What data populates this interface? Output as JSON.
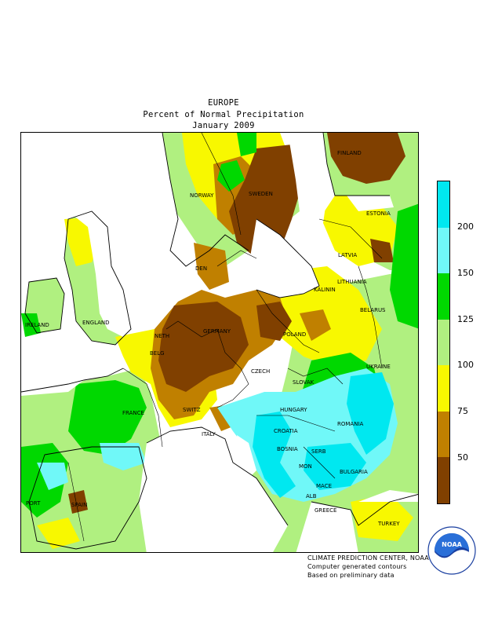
{
  "header": {
    "region": "EUROPE",
    "product": "Percent of Normal Precipitation",
    "period": "January 2009"
  },
  "legend": {
    "ticks": [
      "200",
      "150",
      "125",
      "100",
      "75",
      "50"
    ],
    "classes": [
      {
        "range": ">200",
        "color": "#00e8f0"
      },
      {
        "range": "150-200",
        "color": "#70f8f8"
      },
      {
        "range": "125-150",
        "color": "#00d800"
      },
      {
        "range": "100-125",
        "color": "#b0f080"
      },
      {
        "range": "75-100",
        "color": "#f8f800"
      },
      {
        "range": "50-75",
        "color": "#c08000"
      },
      {
        "range": "<50",
        "color": "#804000"
      }
    ]
  },
  "countries": {
    "finland": "FINLAND",
    "norway": "NORWAY",
    "sweden": "SWEDEN",
    "estonia": "ESTONIA",
    "latvia": "LATVIA",
    "den": "DEN",
    "lithuania": "LITHUANIA",
    "kalinin": "KALININ",
    "belarus": "BELARUS",
    "ireland": "IRELAND",
    "england": "ENGLAND",
    "neth": "NETH",
    "germany": "GERMANY",
    "poland": "POLAND",
    "belg": "BELG",
    "czech": "CZECH",
    "ukraine": "UKRAINE",
    "slovak": "SLOVAK",
    "france": "FRANCE",
    "switz": "SWITZ",
    "hungary": "HUNGARY",
    "romania": "ROMANIA",
    "italy": "ITALY",
    "croatia": "CROATIA",
    "bosnia": "BOSNIA",
    "serb": "SERB",
    "mon": "MON",
    "bulgaria": "BULGARIA",
    "mace": "MACE",
    "alb": "ALB",
    "port": "PORT",
    "spain": "SPAIN",
    "greece": "GREECE",
    "turkey": "TURKEY"
  },
  "credits": {
    "line1": "CLIMATE PREDICTION CENTER, NOAA",
    "line2": "Computer generated contours",
    "line3": "Based on preliminary data"
  },
  "logo": {
    "text": "NOAA"
  }
}
